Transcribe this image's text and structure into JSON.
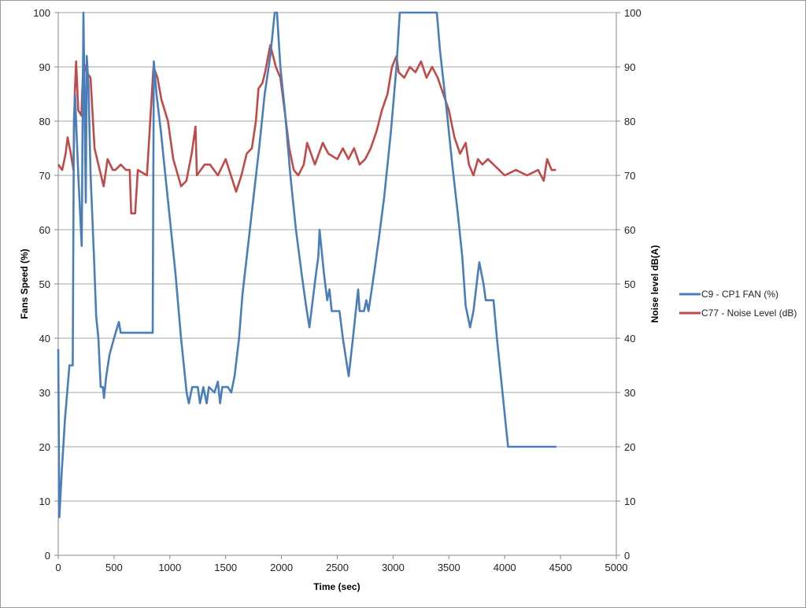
{
  "chart_data": {
    "type": "line",
    "title": "",
    "xlabel": "Time (sec)",
    "ylabel": "Fans Speed (%)",
    "y2label": "Noise level dB(A)",
    "xlim": [
      0,
      5000
    ],
    "ylim": [
      0,
      100
    ],
    "y2lim": [
      0,
      100
    ],
    "xticks": [
      0,
      500,
      1000,
      1500,
      2000,
      2500,
      3000,
      3500,
      4000,
      4500,
      5000
    ],
    "yticks": [
      0,
      10,
      20,
      30,
      40,
      50,
      60,
      70,
      80,
      90,
      100
    ],
    "grid": "horizontal",
    "legend_position": "right",
    "series": [
      {
        "name": "C9 - CP1 FAN (%)",
        "axis": "left",
        "color": "#4a7ebb",
        "points": [
          [
            0,
            38
          ],
          [
            10,
            7
          ],
          [
            30,
            15
          ],
          [
            60,
            25
          ],
          [
            100,
            35
          ],
          [
            130,
            35
          ],
          [
            140,
            80
          ],
          [
            150,
            85
          ],
          [
            180,
            70
          ],
          [
            210,
            57
          ],
          [
            226,
            100
          ],
          [
            247,
            65
          ],
          [
            255,
            92
          ],
          [
            270,
            87
          ],
          [
            290,
            70
          ],
          [
            320,
            55
          ],
          [
            340,
            44
          ],
          [
            360,
            40
          ],
          [
            380,
            31
          ],
          [
            400,
            31
          ],
          [
            410,
            29
          ],
          [
            430,
            33
          ],
          [
            460,
            37
          ],
          [
            500,
            40
          ],
          [
            543,
            43
          ],
          [
            560,
            41
          ],
          [
            846,
            41
          ],
          [
            856,
            91
          ],
          [
            880,
            85
          ],
          [
            920,
            78
          ],
          [
            960,
            70
          ],
          [
            1000,
            62
          ],
          [
            1050,
            52
          ],
          [
            1100,
            40
          ],
          [
            1150,
            30
          ],
          [
            1170,
            28
          ],
          [
            1200,
            31
          ],
          [
            1250,
            31
          ],
          [
            1270,
            28
          ],
          [
            1300,
            31
          ],
          [
            1330,
            28
          ],
          [
            1350,
            31
          ],
          [
            1400,
            30
          ],
          [
            1430,
            32
          ],
          [
            1450,
            28
          ],
          [
            1470,
            31
          ],
          [
            1520,
            31
          ],
          [
            1550,
            30
          ],
          [
            1580,
            33
          ],
          [
            1620,
            40
          ],
          [
            1650,
            48
          ],
          [
            1700,
            57
          ],
          [
            1750,
            66
          ],
          [
            1800,
            75
          ],
          [
            1850,
            85
          ],
          [
            1900,
            92
          ],
          [
            1939,
            100
          ],
          [
            1960,
            100
          ],
          [
            1990,
            90
          ],
          [
            2030,
            82
          ],
          [
            2080,
            70
          ],
          [
            2130,
            60
          ],
          [
            2180,
            52
          ],
          [
            2220,
            46
          ],
          [
            2250,
            42
          ],
          [
            2280,
            47
          ],
          [
            2310,
            52
          ],
          [
            2330,
            55
          ],
          [
            2341,
            60
          ],
          [
            2380,
            52
          ],
          [
            2410,
            47
          ],
          [
            2430,
            49
          ],
          [
            2450,
            45
          ],
          [
            2520,
            45
          ],
          [
            2550,
            40
          ],
          [
            2602,
            33
          ],
          [
            2640,
            40
          ],
          [
            2687,
            49
          ],
          [
            2700,
            45
          ],
          [
            2740,
            45
          ],
          [
            2760,
            47
          ],
          [
            2780,
            45
          ],
          [
            2830,
            52
          ],
          [
            2870,
            58
          ],
          [
            2920,
            66
          ],
          [
            2980,
            78
          ],
          [
            3030,
            90
          ],
          [
            3060,
            100
          ],
          [
            3392,
            100
          ],
          [
            3420,
            93
          ],
          [
            3480,
            82
          ],
          [
            3530,
            72
          ],
          [
            3580,
            63
          ],
          [
            3620,
            55
          ],
          [
            3650,
            46
          ],
          [
            3690,
            42
          ],
          [
            3720,
            45
          ],
          [
            3760,
            52
          ],
          [
            3773,
            54
          ],
          [
            3810,
            50
          ],
          [
            3830,
            47
          ],
          [
            3900,
            47
          ],
          [
            3930,
            40
          ],
          [
            3980,
            30
          ],
          [
            4010,
            24
          ],
          [
            4030,
            20
          ],
          [
            4464,
            20
          ]
        ]
      },
      {
        "name": "C77 - Noise Level (dB)",
        "axis": "right",
        "color": "#be4b48",
        "points": [
          [
            0,
            72
          ],
          [
            35,
            71
          ],
          [
            66,
            74
          ],
          [
            84,
            77
          ],
          [
            113,
            74
          ],
          [
            136,
            71
          ],
          [
            148,
            85
          ],
          [
            160,
            91
          ],
          [
            179,
            82
          ],
          [
            207,
            81
          ],
          [
            226,
            91
          ],
          [
            254,
            89
          ],
          [
            289,
            88
          ],
          [
            325,
            75
          ],
          [
            360,
            72
          ],
          [
            407,
            68
          ],
          [
            442,
            73
          ],
          [
            489,
            71
          ],
          [
            512,
            71
          ],
          [
            560,
            72
          ],
          [
            607,
            71
          ],
          [
            640,
            71
          ],
          [
            654,
            63
          ],
          [
            689,
            63
          ],
          [
            713,
            71
          ],
          [
            795,
            70
          ],
          [
            853,
            90
          ],
          [
            889,
            88
          ],
          [
            924,
            84
          ],
          [
            983,
            80
          ],
          [
            1030,
            73
          ],
          [
            1101,
            68
          ],
          [
            1148,
            69
          ],
          [
            1195,
            74
          ],
          [
            1230,
            79
          ],
          [
            1242,
            70
          ],
          [
            1312,
            72
          ],
          [
            1360,
            72
          ],
          [
            1430,
            70
          ],
          [
            1500,
            73
          ],
          [
            1547,
            70
          ],
          [
            1594,
            67
          ],
          [
            1641,
            70
          ],
          [
            1688,
            74
          ],
          [
            1735,
            75
          ],
          [
            1771,
            80
          ],
          [
            1794,
            86
          ],
          [
            1829,
            87
          ],
          [
            1853,
            89
          ],
          [
            1900,
            94
          ],
          [
            1950,
            90
          ],
          [
            1990,
            88
          ],
          [
            2040,
            80
          ],
          [
            2070,
            75
          ],
          [
            2110,
            71
          ],
          [
            2150,
            70
          ],
          [
            2200,
            72
          ],
          [
            2230,
            76
          ],
          [
            2300,
            72
          ],
          [
            2370,
            76
          ],
          [
            2420,
            74
          ],
          [
            2500,
            73
          ],
          [
            2550,
            75
          ],
          [
            2600,
            73
          ],
          [
            2650,
            75
          ],
          [
            2700,
            72
          ],
          [
            2750,
            73
          ],
          [
            2800,
            75
          ],
          [
            2850,
            78
          ],
          [
            2900,
            82
          ],
          [
            2950,
            85
          ],
          [
            2990,
            90
          ],
          [
            3030,
            92
          ],
          [
            3050,
            89
          ],
          [
            3100,
            88
          ],
          [
            3150,
            90
          ],
          [
            3200,
            89
          ],
          [
            3250,
            91
          ],
          [
            3300,
            88
          ],
          [
            3350,
            90
          ],
          [
            3400,
            88
          ],
          [
            3450,
            85
          ],
          [
            3500,
            82
          ],
          [
            3550,
            77
          ],
          [
            3600,
            74
          ],
          [
            3650,
            76
          ],
          [
            3680,
            72
          ],
          [
            3720,
            70
          ],
          [
            3760,
            73
          ],
          [
            3800,
            72
          ],
          [
            3850,
            73
          ],
          [
            3900,
            72
          ],
          [
            3950,
            71
          ],
          [
            4000,
            70
          ],
          [
            4100,
            71
          ],
          [
            4200,
            70
          ],
          [
            4300,
            71
          ],
          [
            4350,
            69
          ],
          [
            4380,
            73
          ],
          [
            4420,
            71
          ],
          [
            4460,
            71
          ]
        ]
      }
    ]
  }
}
